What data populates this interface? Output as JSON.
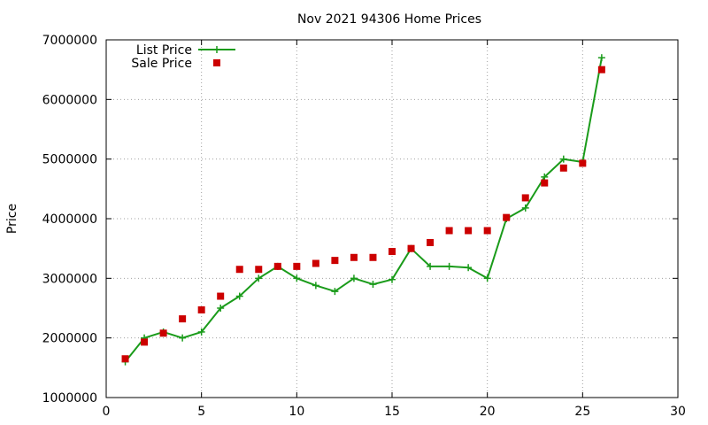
{
  "chart_data": {
    "type": "line",
    "title": "Nov 2021 94306 Home Prices",
    "xlabel": "",
    "ylabel": "Price",
    "xlim": [
      0,
      30
    ],
    "ylim": [
      1000000,
      7000000
    ],
    "x_ticks": [
      0,
      5,
      10,
      15,
      20,
      25,
      30
    ],
    "y_ticks": [
      1000000,
      2000000,
      3000000,
      4000000,
      5000000,
      6000000,
      7000000
    ],
    "x_tick_labels": [
      "0",
      "5",
      "10",
      "15",
      "20",
      "25",
      "30"
    ],
    "y_tick_labels": [
      "1000000",
      "2000000",
      "3000000",
      "4000000",
      "5000000",
      "6000000",
      "7000000"
    ],
    "grid": true,
    "legend_position": "top-left",
    "series": [
      {
        "name": "List Price",
        "style": "line-plus",
        "color": "#1a9b1a",
        "x": [
          1,
          2,
          3,
          4,
          5,
          6,
          7,
          8,
          9,
          10,
          11,
          12,
          13,
          14,
          15,
          16,
          17,
          18,
          19,
          20,
          21,
          22,
          23,
          24,
          25,
          26
        ],
        "y": [
          1600000,
          2000000,
          2100000,
          2000000,
          2100000,
          2500000,
          2700000,
          3000000,
          3200000,
          3000000,
          2880000,
          2780000,
          3000000,
          2900000,
          2980000,
          3500000,
          3200000,
          3200000,
          3180000,
          3000000,
          4000000,
          4180000,
          4700000,
          5000000,
          4950000,
          6700000
        ]
      },
      {
        "name": "Sale Price",
        "style": "square-marker",
        "color": "#cc0000",
        "x": [
          1,
          2,
          3,
          4,
          5,
          6,
          7,
          8,
          9,
          10,
          11,
          12,
          13,
          14,
          15,
          16,
          17,
          18,
          19,
          20,
          21,
          22,
          23,
          24,
          25,
          26
        ],
        "y": [
          1650000,
          1930000,
          2080000,
          2320000,
          2470000,
          2700000,
          3150000,
          3150000,
          3200000,
          3200000,
          3250000,
          3300000,
          3350000,
          3350000,
          3450000,
          3500000,
          3600000,
          3800000,
          3800000,
          3800000,
          4020000,
          4350000,
          4600000,
          4850000,
          4930000,
          6500000
        ]
      }
    ]
  }
}
